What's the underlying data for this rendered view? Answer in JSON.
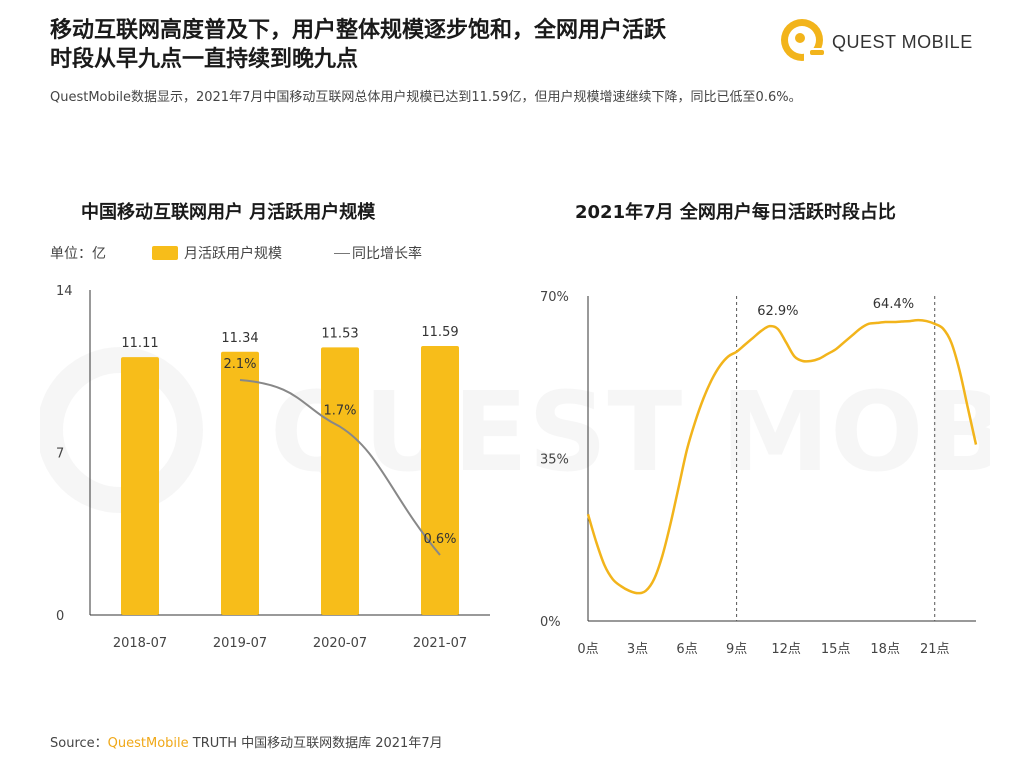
{
  "headline": {
    "line1": "移动互联网高度普及下，用户整体规模逐步饱和，全网用户活跃",
    "line2": "时段从早九点一直持续到晚九点"
  },
  "subline": "QuestMobile数据显示，2021年7月中国移动互联网总体用户规模已达到11.59亿，但用户规模增速继续下降，同比已低至0.6%。",
  "logo": {
    "text": "QUEST MOBILE",
    "watermark_text": "QUEST MOBILE"
  },
  "colors": {
    "bar": "#f7bd1a",
    "line": "#888888",
    "curve": "#f2b41b",
    "accent": "#f0a818"
  },
  "chart_data": [
    {
      "type": "bar",
      "title": "中国移动互联网用户 月活跃用户规模",
      "unit_label": "单位：亿",
      "categories": [
        "2018-07",
        "2019-07",
        "2020-07",
        "2021-07"
      ],
      "yticks": [
        "14",
        "7",
        "0"
      ],
      "ylim": [
        0,
        14
      ],
      "series": [
        {
          "name": "月活跃用户规模",
          "values": [
            11.11,
            11.34,
            11.53,
            11.59
          ],
          "labels": [
            "11.11",
            "11.34",
            "11.53",
            "11.59"
          ]
        }
      ],
      "line_series": {
        "name": "同比增长率",
        "categories": [
          "2019-07",
          "2020-07",
          "2021-07"
        ],
        "values": [
          2.1,
          1.7,
          0.6
        ],
        "labels": [
          "2.1%",
          "1.7%",
          "0.6%"
        ]
      },
      "legend": "top"
    },
    {
      "type": "line",
      "title": "2021年7月 全网用户每日活跃时段占比",
      "xticks": [
        "0点",
        "3点",
        "6点",
        "9点",
        "12点",
        "15点",
        "18点",
        "21点"
      ],
      "yticks": [
        "70%",
        "35%",
        "0%"
      ],
      "ylim": [
        0,
        70
      ],
      "xlim": [
        0,
        23.5
      ],
      "series": [
        {
          "x": [
            0,
            0.5,
            1,
            1.5,
            2,
            2.5,
            3,
            3.5,
            4,
            4.5,
            5,
            5.5,
            6,
            6.5,
            7,
            7.5,
            8,
            8.5,
            9,
            9.5,
            10,
            10.5,
            11,
            11.5,
            12,
            12.5,
            13,
            13.5,
            14,
            14.5,
            15,
            15.5,
            16,
            16.5,
            17,
            17.5,
            18,
            18.5,
            19,
            19.5,
            20,
            20.5,
            21,
            21.5,
            22,
            22.5,
            23,
            23.5
          ],
          "values": [
            23,
            17,
            12,
            9,
            7.5,
            6.5,
            6,
            6.5,
            9,
            14,
            21,
            29,
            37,
            43,
            48,
            52,
            55,
            57,
            58,
            59.5,
            61,
            62.5,
            63.5,
            62.9,
            60,
            57,
            56,
            56,
            56.5,
            57.5,
            58.5,
            60,
            61.5,
            63,
            64,
            64.2,
            64.4,
            64.4,
            64.5,
            64.6,
            64.8,
            64.6,
            64,
            63,
            60,
            54,
            46,
            38
          ]
        }
      ],
      "annotations": [
        {
          "x": 11.5,
          "label": "62.9%"
        },
        {
          "x": 18.5,
          "label": "64.4%"
        }
      ],
      "reference_lines_x": [
        9,
        21
      ]
    }
  ],
  "source": {
    "prefix": "Source：",
    "brand": "QuestMobile",
    "rest": " TRUTH 中国移动互联网数据库 2021年7月"
  }
}
